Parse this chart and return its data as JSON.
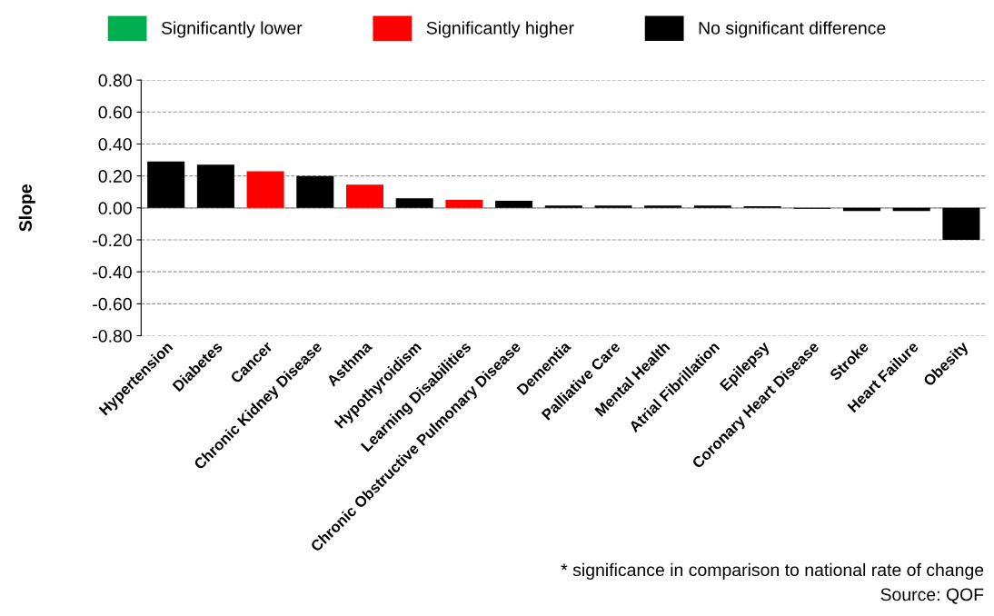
{
  "chart_data": {
    "type": "bar",
    "ylabel": "Slope",
    "categories": [
      "Hypertension",
      "Diabetes",
      "Cancer",
      "Chronic Kidney Disease",
      "Asthma",
      "Hypothyroidism",
      "Learning Disabilities",
      "Chronic Obstructive Pulmonary Disease",
      "Dementia",
      "Palliative Care",
      "Mental Health",
      "Atrial Fibrillation",
      "Epilepsy",
      "Coronary Heart Disease",
      "Stroke",
      "Heart Failure",
      "Obesity"
    ],
    "series": [
      {
        "name": "Significantly lower",
        "color": "#00b050",
        "values": [
          null,
          null,
          null,
          null,
          null,
          null,
          null,
          null,
          null,
          null,
          null,
          null,
          null,
          null,
          null,
          null,
          null
        ]
      },
      {
        "name": "Significantly higher",
        "color": "#ff0000",
        "values": [
          null,
          null,
          0.23,
          null,
          0.145,
          null,
          0.05,
          null,
          null,
          null,
          null,
          null,
          null,
          null,
          null,
          null,
          null
        ]
      },
      {
        "name": "No significant difference",
        "color": "#000000",
        "values": [
          0.29,
          0.27,
          null,
          0.2,
          null,
          0.06,
          null,
          0.045,
          0.015,
          0.015,
          0.015,
          0.015,
          0.01,
          -0.005,
          -0.02,
          -0.02,
          -0.2
        ]
      }
    ],
    "ylim": [
      -0.8,
      0.8
    ],
    "yticks": [
      {
        "value": -0.8,
        "label": "-0.80"
      },
      {
        "value": -0.6,
        "label": "-0.60"
      },
      {
        "value": -0.4,
        "label": "-0.40"
      },
      {
        "value": -0.2,
        "label": "-0.20"
      },
      {
        "value": 0,
        "label": "0.00"
      },
      {
        "value": 0.2,
        "label": "0.20"
      },
      {
        "value": 0.4,
        "label": "0.40"
      },
      {
        "value": 0.6,
        "label": "0.60"
      },
      {
        "value": 0.8,
        "label": "0.80"
      }
    ],
    "grid": "y",
    "legend": "top",
    "annotations": [
      "* significance in comparison to national rate of change",
      "Source: QOF"
    ]
  }
}
